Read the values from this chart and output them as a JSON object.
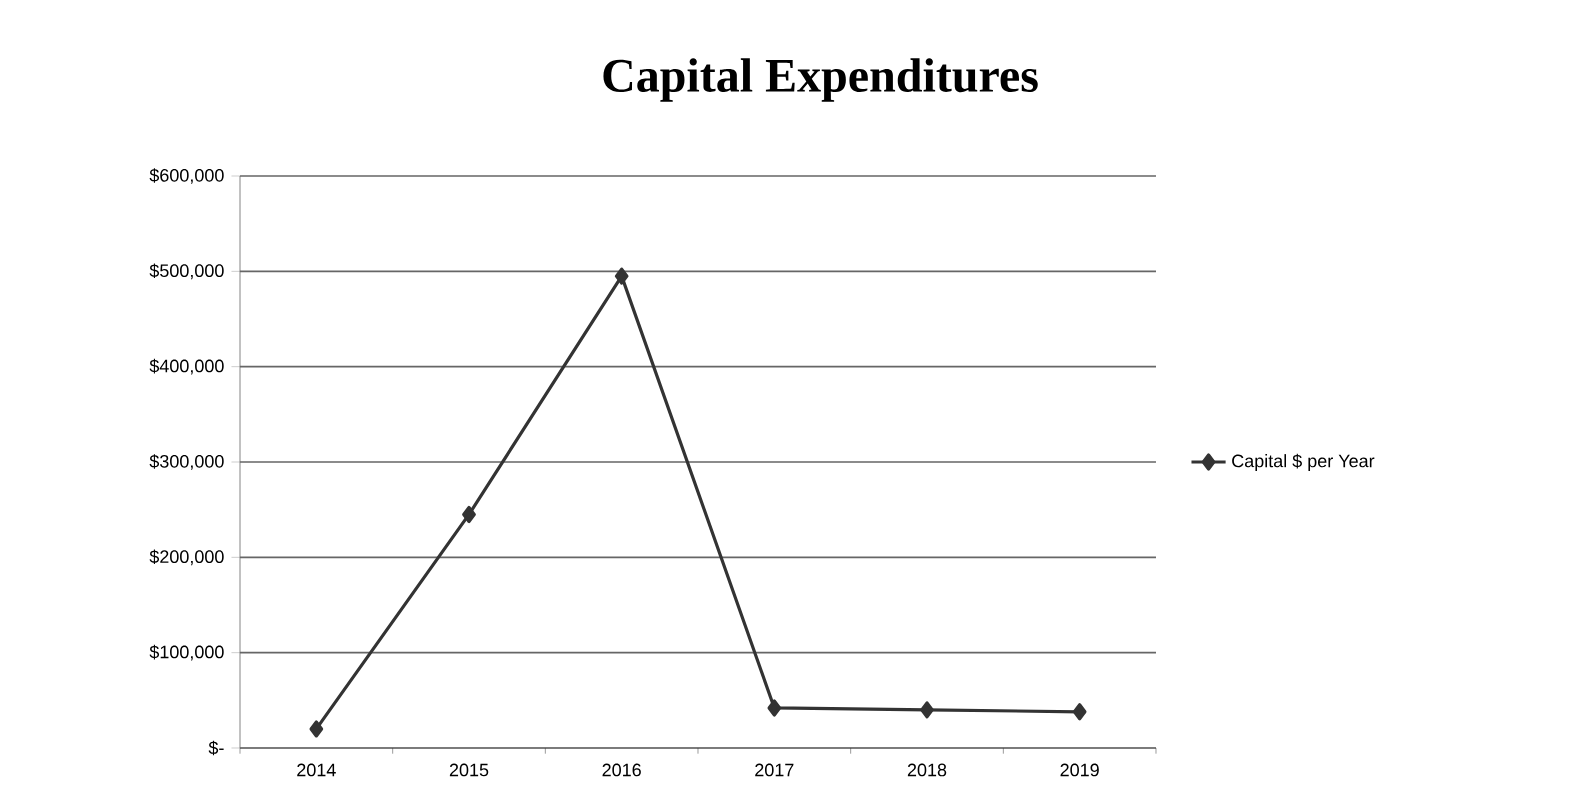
{
  "chart_data": {
    "type": "line",
    "title": "Capital Expenditures",
    "categories": [
      "2014",
      "2015",
      "2016",
      "2017",
      "2018",
      "2019"
    ],
    "series": [
      {
        "name": "Capital $ per Year",
        "color": "#333333",
        "values": [
          20000,
          245000,
          495000,
          42000,
          40000,
          38000
        ]
      }
    ],
    "ylim": [
      0,
      600000
    ],
    "yticks": [
      {
        "value": 0,
        "label": "$-"
      },
      {
        "value": 100000,
        "label": "$100,000"
      },
      {
        "value": 200000,
        "label": "$200,000"
      },
      {
        "value": 300000,
        "label": "$300,000"
      },
      {
        "value": 400000,
        "label": "$400,000"
      },
      {
        "value": 500000,
        "label": "$500,000"
      },
      {
        "value": 600000,
        "label": "$600,000"
      }
    ],
    "grid": "y",
    "legend": "right",
    "marker": "diamond",
    "line_style": "solid"
  }
}
